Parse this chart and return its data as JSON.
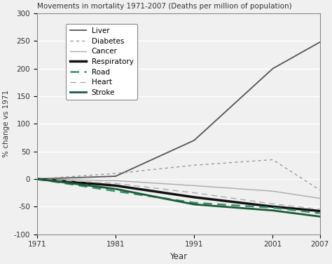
{
  "title": "Movements in mortality 1971-2007 (Deaths per million of population)",
  "xlabel": "Year",
  "ylabel": "% change vs 1971",
  "years": [
    1971,
    1981,
    1991,
    2001,
    2007
  ],
  "ylim": [
    -100,
    300
  ],
  "yticks": [
    -100,
    -50,
    0,
    50,
    100,
    150,
    200,
    250,
    300
  ],
  "series": {
    "Liver": {
      "values": [
        0,
        5,
        70,
        200,
        248
      ],
      "color": "#555555",
      "linestyle": "-",
      "linewidth": 1.3,
      "dashes": null
    },
    "Diabetes": {
      "values": [
        0,
        10,
        25,
        35,
        -20
      ],
      "color": "#999999",
      "linestyle": "--",
      "linewidth": 1.0,
      "dashes": [
        3,
        3
      ]
    },
    "Cancer": {
      "values": [
        0,
        -3,
        -12,
        -22,
        -35
      ],
      "color": "#aaaaaa",
      "linestyle": "-",
      "linewidth": 1.0,
      "dashes": null
    },
    "Respiratory": {
      "values": [
        0,
        -12,
        -33,
        -50,
        -58
      ],
      "color": "#111111",
      "linestyle": "-",
      "linewidth": 2.5,
      "dashes": null
    },
    "Road": {
      "values": [
        0,
        -22,
        -43,
        -52,
        -62
      ],
      "color": "#3a8c6e",
      "linestyle": "--",
      "linewidth": 1.8,
      "dashes": [
        5,
        3
      ]
    },
    "Heart": {
      "values": [
        0,
        -8,
        -25,
        -45,
        -55
      ],
      "color": "#aaaaaa",
      "linestyle": "--",
      "linewidth": 1.0,
      "dashes": [
        6,
        4
      ]
    },
    "Stroke": {
      "values": [
        0,
        -18,
        -46,
        -57,
        -68
      ],
      "color": "#1a5c3a",
      "linestyle": "-",
      "linewidth": 2.0,
      "dashes": null
    }
  },
  "legend_order": [
    "Liver",
    "Diabetes",
    "Cancer",
    "Respiratory",
    "Road",
    "Heart",
    "Stroke"
  ],
  "bg_color": "#f0f0f0",
  "plot_bg": "#f0f0f0",
  "grid_color": "#ffffff",
  "spine_color": "#888888"
}
